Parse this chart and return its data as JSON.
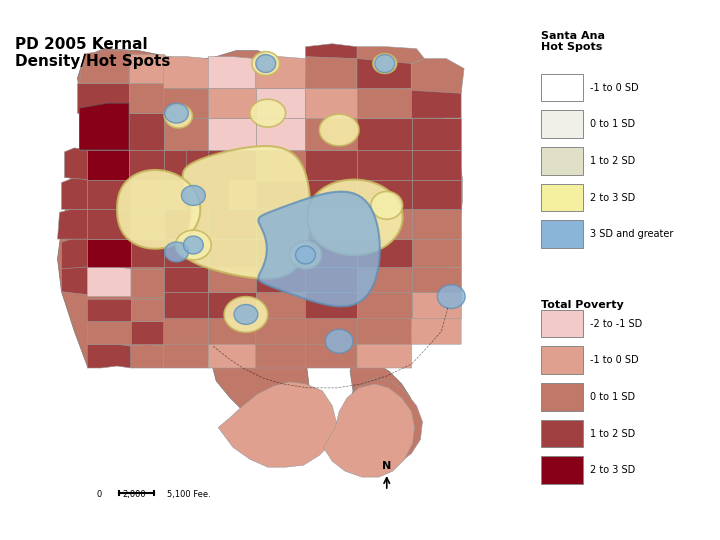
{
  "title": "PD 2005 Kernal\nDensity/Hot Spots",
  "title_fontsize": 11,
  "title_fontweight": "bold",
  "background_color": "#f0ece4",
  "legend_title_hotspots": "Santa Ana\nHot Spots",
  "legend_title_poverty": "Total Poverty",
  "hotspot_labels": [
    "-1 to 0 SD",
    "0 to 1 SD",
    "1 to 2 SD",
    "2 to 3 SD",
    "3 SD and greater"
  ],
  "hotspot_colors": [
    "#ffffff",
    "#f0f0e8",
    "#e0e0c8",
    "#f5f0a0",
    "#8ab4d8"
  ],
  "hotspot_edgecolors": [
    "#aaaaaa",
    "#aaaaaa",
    "#aaaaaa",
    "#aaaaaa",
    "#aaaaaa"
  ],
  "poverty_labels": [
    "-2 to -1 SD",
    "-1 to 0 SD",
    "0 to 1 SD",
    "1 to 2 SD",
    "2 to 3 SD"
  ],
  "poverty_colors": [
    "#f2cac8",
    "#dfa090",
    "#c07868",
    "#a04040",
    "#880018"
  ],
  "kde_cream_color": "#f5eeaa",
  "kde_cream_edge": "#c8b860",
  "kde_blue_color": "#8ab4d8",
  "kde_blue_edge": "#6090b8",
  "map_bg_color": "#e8ddd0",
  "scale_text": "0      2,000    5,100 Fee.",
  "north_label": "N"
}
